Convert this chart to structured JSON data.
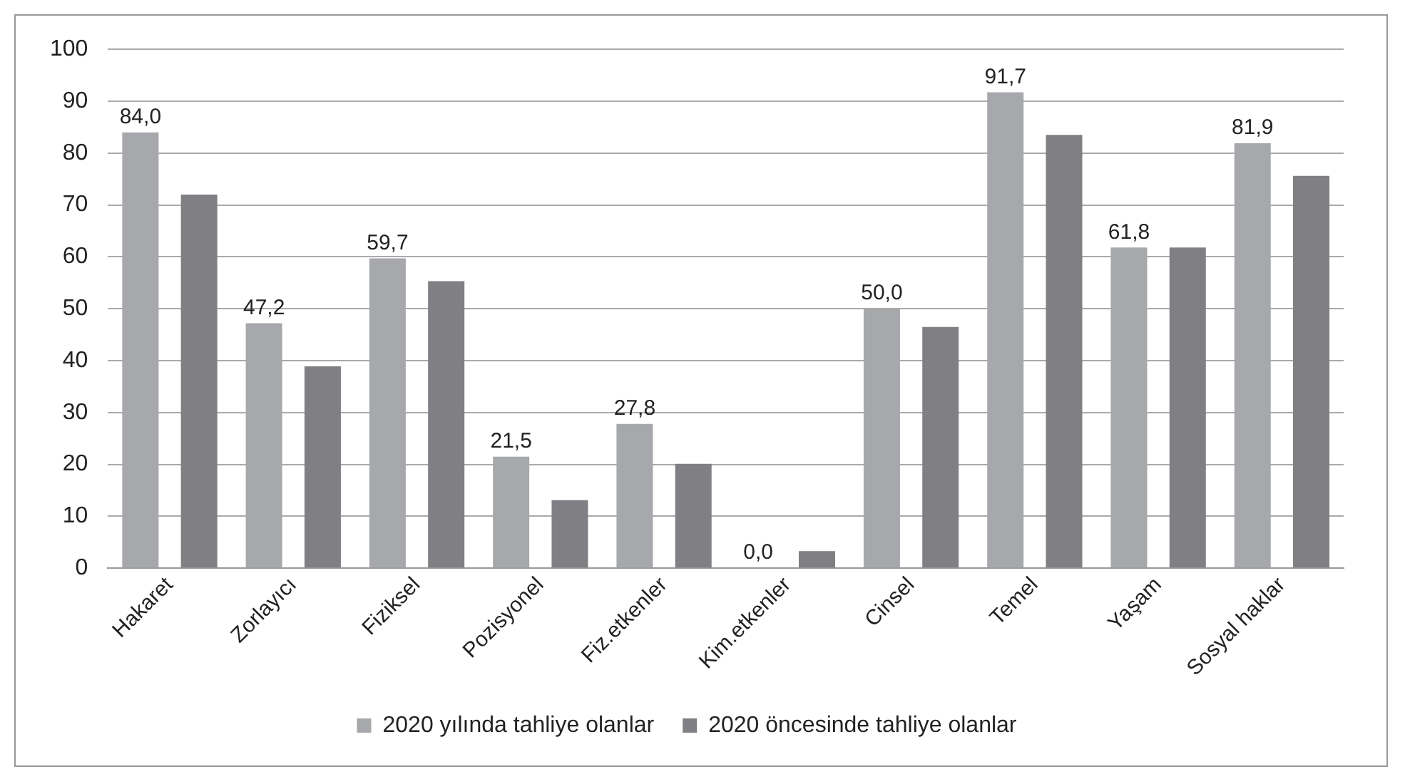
{
  "chart_data": {
    "type": "bar",
    "categories": [
      "Hakaret",
      "Zorlayıcı",
      "Fiziksel",
      "Pozisyonel",
      "Fiz.etkenler",
      "Kim.etkenler",
      "Cinsel",
      "Temel",
      "Yaşam",
      "Sosyal haklar"
    ],
    "series": [
      {
        "name": "2020 yılında tahliye olanlar",
        "color": "#a7a8ab",
        "values": [
          84.0,
          47.2,
          59.7,
          21.5,
          27.8,
          0.0,
          50.0,
          91.7,
          61.8,
          81.9
        ],
        "value_labels": [
          "84,0",
          "47,2",
          "59,7",
          "21,5",
          "27,8",
          "0,0",
          "50,0",
          "91,7",
          "61,8",
          "81,9"
        ]
      },
      {
        "name": "2020 öncesinde tahliye olanlar",
        "color": "#808084",
        "values": [
          72.0,
          38.9,
          55.3,
          13.1,
          20.1,
          3.3,
          46.5,
          83.5,
          61.8,
          75.6
        ]
      }
    ],
    "ylim": [
      0,
      100
    ],
    "yticks": [
      0,
      10,
      20,
      30,
      40,
      50,
      60,
      70,
      80,
      90,
      100
    ],
    "grid": "y",
    "legend": "bottom"
  }
}
